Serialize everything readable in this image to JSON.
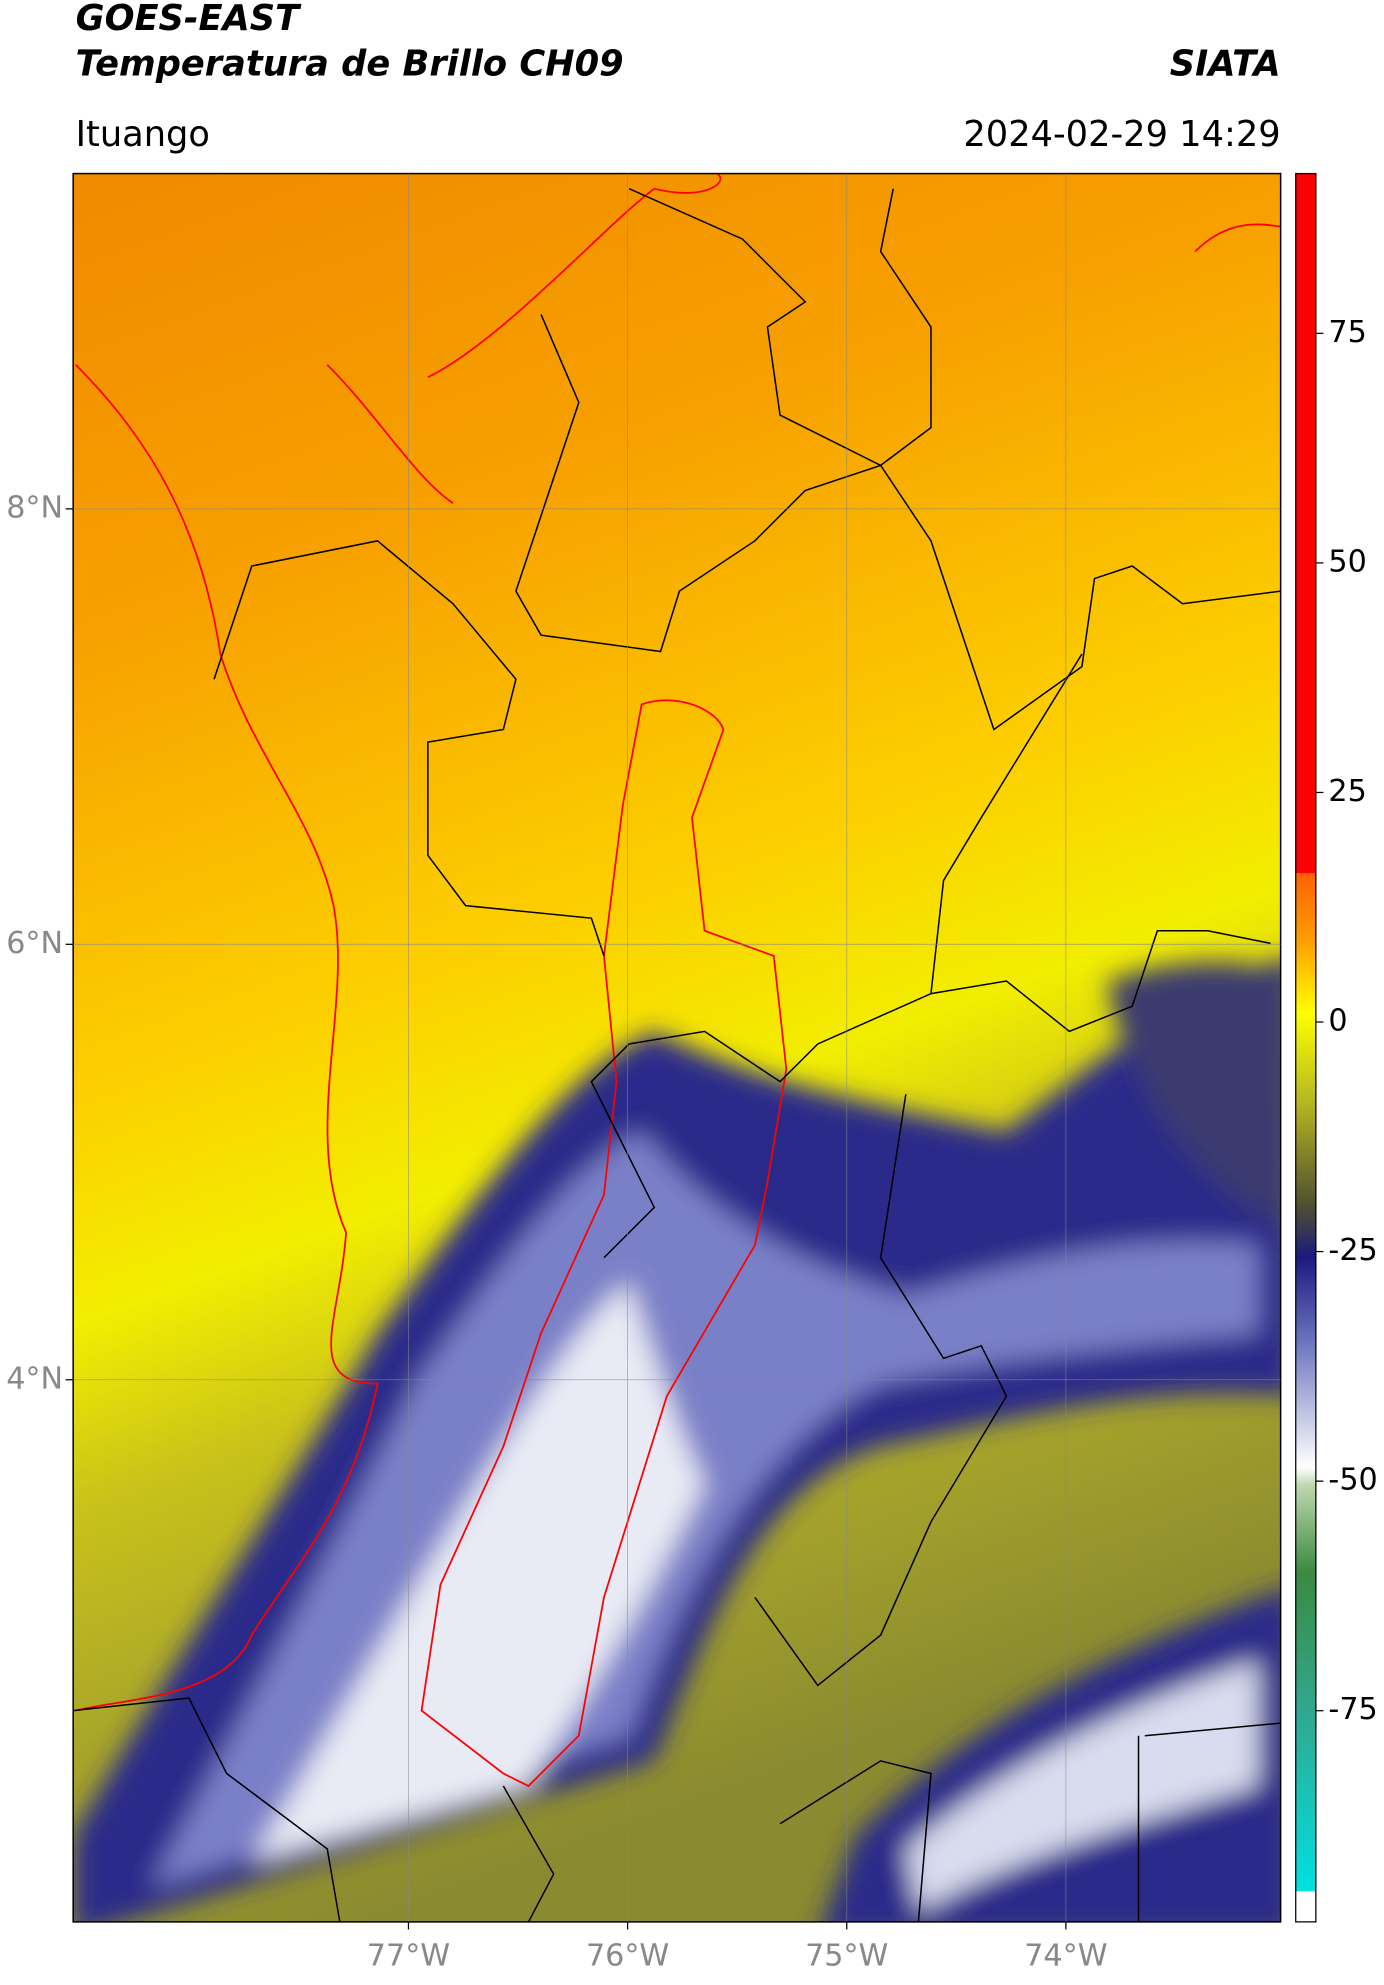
{
  "header": {
    "title": "GOES-EAST",
    "subtitle": "Temperatura de Brillo CH09",
    "source": "SIATA",
    "location": "Ituango",
    "datetime": "2024-02-29 14:29"
  },
  "map": {
    "xlim": [
      -78.53,
      -73.02
    ],
    "ylim": [
      1.51,
      9.54
    ],
    "xticks": [
      {
        "value": -77,
        "label": "77°W"
      },
      {
        "value": -76,
        "label": "76°W"
      },
      {
        "value": -75,
        "label": "75°W"
      },
      {
        "value": -74,
        "label": "74°W"
      }
    ],
    "yticks": [
      {
        "value": 4,
        "label": "4°N"
      },
      {
        "value": 6,
        "label": "6°N"
      },
      {
        "value": 8,
        "label": "8°N"
      }
    ]
  },
  "colorbar": {
    "lim": [
      -98,
      92.4
    ],
    "ticks": [
      -75,
      -50,
      -25,
      0,
      25,
      50,
      75
    ]
  }
}
